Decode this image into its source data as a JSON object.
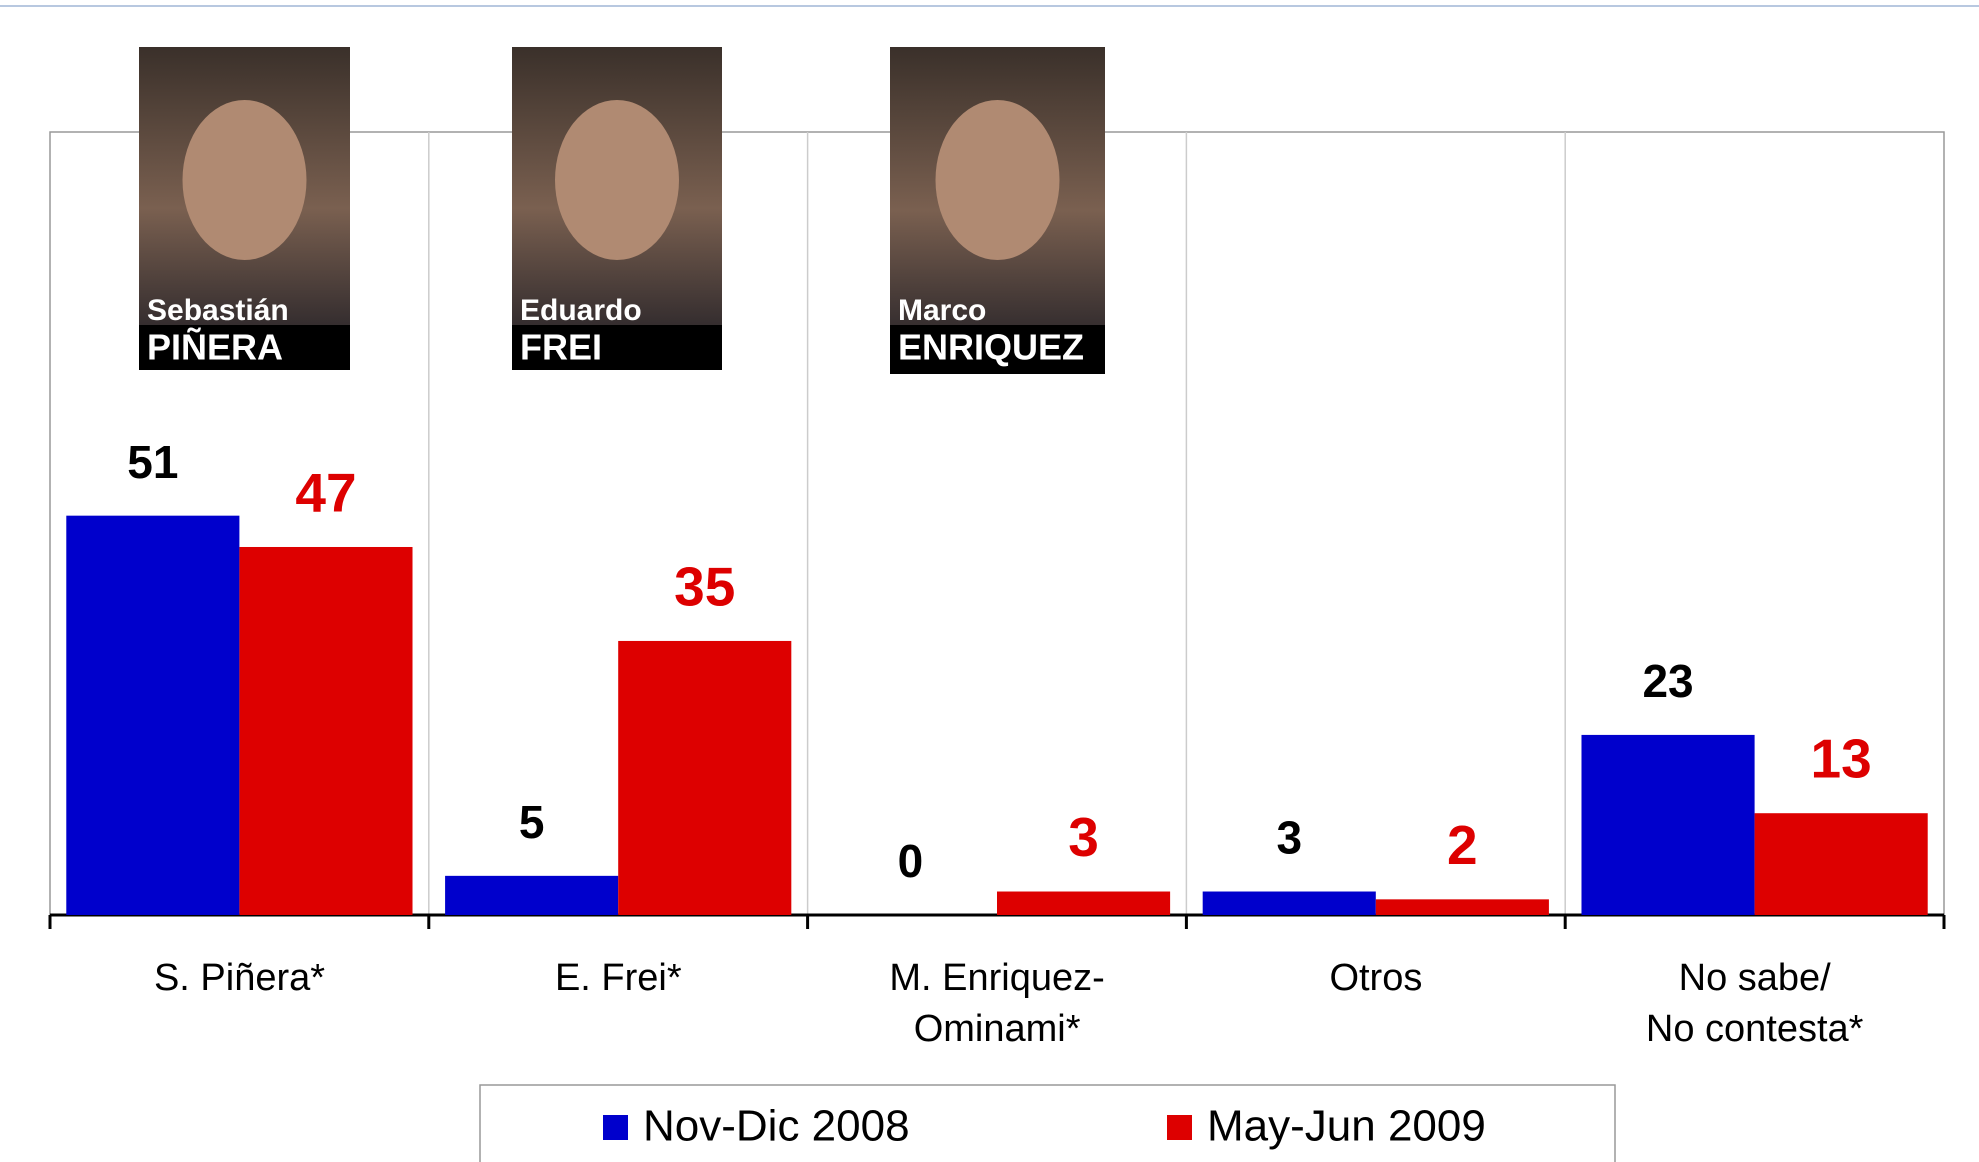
{
  "chart_data": {
    "type": "bar",
    "categories": [
      "S. Piñera*",
      "E. Frei*",
      "M. Enriquez-\nOminami*",
      "Otros",
      "No sabe/\nNo contesta*"
    ],
    "series": [
      {
        "name": "Nov-Dic 2008",
        "color": "#0000cc",
        "label_color": "#000000",
        "values": [
          51,
          5,
          0,
          3,
          23
        ]
      },
      {
        "name": "May-Jun 2009",
        "color": "#dd0000",
        "label_color": "#dd0000",
        "values": [
          47,
          35,
          3,
          2,
          13
        ]
      }
    ],
    "ylim": [
      0,
      100
    ],
    "photo_captions": [
      {
        "first": "Sebastián",
        "last": "PIÑERA"
      },
      {
        "first": "Eduardo",
        "last": "FREI"
      },
      {
        "first": "Marco",
        "last": "ENRIQUEZ"
      }
    ]
  }
}
